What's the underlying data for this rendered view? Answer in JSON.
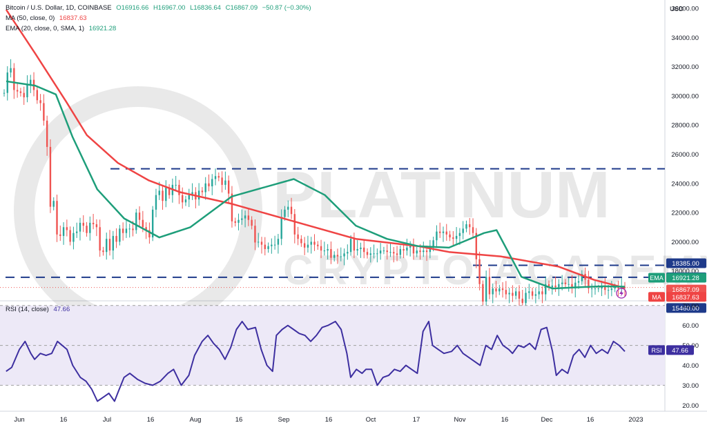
{
  "header": {
    "symbol": "Bitcoin / U.S. Dollar, 1D, COINBASE",
    "open": "O16916.66",
    "high": "H16967.00",
    "low": "L16836.64",
    "close": "C16867.09",
    "change": "−50.87 (−0.30%)",
    "ma_label": "MA (50, close, 0)",
    "ma_value": "16837.63",
    "ema_label": "EMA (20, close, 0, SMA, 1)",
    "ema_value": "16921.28",
    "rsi_label": "RSI (14, close)",
    "rsi_value": "47.66"
  },
  "watermark": {
    "line1": "PLATINUM",
    "line2": "CRYPTO ACADEMY"
  },
  "colors": {
    "up": "#26a69a",
    "down": "#ef5350",
    "ma": "#ef4444",
    "ema": "#1e9e7a",
    "rsi": "#3d2fa0",
    "rsi_band": "#ede9f7",
    "level": "#1e3a8a"
  },
  "chart_data": [
    {
      "type": "line",
      "title": "Bitcoin / U.S. Dollar, 1D, COINBASE",
      "currency": "USD",
      "ylim": [
        16000,
        36000
      ],
      "y_ticks": [
        18000,
        20000,
        22000,
        24000,
        26000,
        28000,
        30000,
        32000,
        34000,
        36000
      ],
      "y_tick_labels": [
        "18000.00",
        "20000.00",
        "22000.00",
        "24000.00",
        "26000.00",
        "28000.00",
        "30000.00",
        "32000.00",
        "34000.00",
        "36000.00"
      ],
      "x_tick_labels": [
        "Jun",
        "16",
        "Jul",
        "16",
        "Aug",
        "16",
        "Sep",
        "16",
        "Oct",
        "17",
        "Nov",
        "16",
        "Dec",
        "16",
        "2023"
      ],
      "horizontal_levels": [
        {
          "value": 25000,
          "label": "25000.00"
        },
        {
          "value": 17568,
          "label": "17568.00"
        },
        {
          "value": 15460,
          "label": "15460.00"
        }
      ],
      "price_labels": [
        {
          "label": "18385.00",
          "value": 18385
        },
        {
          "label": "17568.00",
          "value": 17568
        },
        {
          "tag": "EMA",
          "label": "16921.28",
          "value": 16921.28
        },
        {
          "label": "16867.09",
          "value": 16867.09
        },
        {
          "tag": "MA",
          "label": "16837.63",
          "value": 16837.63
        },
        {
          "label": "15460.00",
          "value": 15460
        }
      ],
      "series": [
        {
          "name": "Price",
          "close": [
            30200,
            31600,
            31900,
            30400,
            30300,
            30200,
            29900,
            30800,
            31100,
            30400,
            29700,
            29500,
            28300,
            26500,
            22400,
            22800,
            20500,
            20400,
            21000,
            20800,
            20000,
            20600,
            20700,
            21300,
            21100,
            20600,
            21300,
            21200,
            21000,
            19400,
            19300,
            20200,
            19400,
            20400,
            20000,
            20900,
            20600,
            20900,
            20900,
            20800,
            22000,
            21500,
            21000,
            20800,
            20300,
            22200,
            23200,
            23500,
            22800,
            23700,
            23200,
            23900,
            23900,
            23200,
            22700,
            22900,
            23200,
            23400,
            22900,
            23500,
            23400,
            24000,
            23800,
            24300,
            24500,
            24400,
            23900,
            24200,
            23300,
            21400,
            21300,
            21500,
            21600,
            21800,
            21500,
            21100,
            19950,
            20000,
            19800,
            19500,
            19700,
            19800,
            19800,
            20200,
            21700,
            22200,
            22400,
            21900,
            20500,
            20200,
            19900,
            19600,
            19800,
            20000,
            19800,
            19700,
            19400,
            19400,
            19500,
            18900,
            19100,
            19000,
            19000,
            19200,
            19300,
            20200,
            19400,
            19500,
            19600,
            19300,
            19100,
            19200,
            19200,
            19200,
            19400,
            19400,
            19300,
            19300,
            19200,
            19100,
            19500,
            19400,
            19600,
            19700,
            19200,
            19400,
            19300,
            19400,
            19300,
            19600,
            20100,
            20700,
            20600,
            20700,
            20500,
            20300,
            20200,
            20400,
            20600,
            20900,
            21200,
            21000,
            20600,
            18800,
            17100,
            15900,
            17600,
            16400,
            16800,
            16600,
            16800,
            16700,
            16400,
            16500,
            16300,
            16600,
            16100,
            15800,
            16500,
            16600,
            16300,
            16400,
            16600,
            16400,
            17100,
            16900,
            17000,
            16900,
            17100,
            17200,
            17100,
            17100,
            16800,
            17200,
            17300,
            17800,
            17400,
            16800,
            16800,
            16800,
            16800,
            16900,
            16700,
            16700,
            16800,
            16900,
            16800,
            16900,
            16867
          ]
        },
        {
          "name": "MA (50, close, 0)",
          "values": [
            [
              1,
              35900
            ],
            [
              15,
              32900
            ],
            [
              30,
              29600
            ],
            [
              40,
              27300
            ],
            [
              55,
              25400
            ],
            [
              70,
              24200
            ],
            [
              85,
              23400
            ],
            [
              110,
              22600
            ],
            [
              140,
              21400
            ],
            [
              170,
              20200
            ],
            [
              200,
              19700
            ],
            [
              215,
              19300
            ],
            [
              240,
              19000
            ],
            [
              268,
              18300
            ],
            [
              285,
              17400
            ],
            [
              300,
              16837.63
            ]
          ]
        },
        {
          "name": "EMA (20, close, 0, SMA, 1)",
          "values": [
            [
              1,
              31000
            ],
            [
              15,
              30700
            ],
            [
              25,
              30100
            ],
            [
              33,
              27200
            ],
            [
              45,
              23600
            ],
            [
              58,
              21600
            ],
            [
              75,
              20300
            ],
            [
              90,
              21000
            ],
            [
              110,
              23100
            ],
            [
              125,
              23700
            ],
            [
              140,
              24300
            ],
            [
              155,
              23200
            ],
            [
              170,
              21100
            ],
            [
              185,
              20200
            ],
            [
              200,
              19700
            ],
            [
              215,
              19600
            ],
            [
              232,
              20600
            ],
            [
              238,
              20800
            ],
            [
              250,
              17600
            ],
            [
              265,
              16800
            ],
            [
              280,
              16900
            ],
            [
              290,
              16950
            ],
            [
              300,
              16921.28
            ]
          ]
        }
      ]
    },
    {
      "type": "line",
      "title": "RSI (14, close)",
      "ylim": [
        17,
        72
      ],
      "y_ticks": [
        20,
        30,
        40,
        50,
        60,
        70
      ],
      "y_tick_labels": [
        "20.00",
        "30.00",
        "40.00",
        "50.00",
        "60.00",
        "70.00"
      ],
      "band": [
        30,
        70
      ],
      "midline": 50,
      "last": 47.66,
      "series": [
        {
          "name": "RSI",
          "values": [
            [
              1,
              37
            ],
            [
              4,
              39
            ],
            [
              8,
              48
            ],
            [
              11,
              52
            ],
            [
              14,
              46
            ],
            [
              16,
              43
            ],
            [
              19,
              46
            ],
            [
              22,
              45
            ],
            [
              25,
              46
            ],
            [
              28,
              52
            ],
            [
              33,
              48
            ],
            [
              36,
              40
            ],
            [
              40,
              34
            ],
            [
              43,
              32
            ],
            [
              46,
              28
            ],
            [
              49,
              22
            ],
            [
              52,
              24
            ],
            [
              55,
              26
            ],
            [
              58,
              22
            ],
            [
              60,
              27
            ],
            [
              63,
              34
            ],
            [
              66,
              36
            ],
            [
              70,
              33
            ],
            [
              74,
              31
            ],
            [
              78,
              30
            ],
            [
              82,
              32
            ],
            [
              86,
              36
            ],
            [
              89,
              38
            ],
            [
              93,
              30
            ],
            [
              97,
              35
            ],
            [
              100,
              45
            ],
            [
              104,
              52
            ],
            [
              107,
              55
            ],
            [
              110,
              51
            ],
            [
              113,
              48
            ],
            [
              116,
              43
            ],
            [
              119,
              49
            ],
            [
              122,
              58
            ],
            [
              125,
              62
            ],
            [
              128,
              58
            ],
            [
              132,
              59
            ],
            [
              135,
              48
            ],
            [
              138,
              40
            ],
            [
              141,
              37
            ],
            [
              143,
              55
            ],
            [
              146,
              58
            ],
            [
              149,
              60
            ],
            [
              152,
              58
            ],
            [
              155,
              56
            ],
            [
              158,
              55
            ],
            [
              161,
              52
            ],
            [
              164,
              55
            ],
            [
              167,
              59
            ],
            [
              170,
              60
            ],
            [
              174,
              62
            ],
            [
              177,
              58
            ],
            [
              180,
              46
            ],
            [
              182,
              34
            ],
            [
              185,
              38
            ],
            [
              188,
              36
            ],
            [
              190,
              38
            ],
            [
              193,
              38
            ],
            [
              196,
              30
            ],
            [
              199,
              34
            ],
            [
              202,
              35
            ],
            [
              205,
              38
            ],
            [
              208,
              37
            ],
            [
              211,
              40
            ],
            [
              214,
              38
            ],
            [
              217,
              36
            ],
            [
              220,
              57
            ],
            [
              223,
              62
            ],
            [
              225,
              50
            ],
            [
              228,
              48
            ],
            [
              231,
              46
            ],
            [
              235,
              47
            ],
            [
              238,
              50
            ],
            [
              241,
              46
            ],
            [
              244,
              44
            ],
            [
              247,
              42
            ],
            [
              250,
              40
            ],
            [
              253,
              50
            ],
            [
              256,
              48
            ],
            [
              259,
              55
            ],
            [
              262,
              50
            ],
            [
              265,
              48
            ],
            [
              267,
              46
            ],
            [
              270,
              50
            ],
            [
              273,
              49
            ],
            [
              276,
              51
            ],
            [
              279,
              48
            ],
            [
              282,
              58
            ],
            [
              285,
              59
            ],
            [
              288,
              47
            ],
            [
              290,
              35
            ],
            [
              293,
              38
            ],
            [
              296,
              36
            ],
            [
              299,
              45
            ],
            [
              302,
              48
            ],
            [
              305,
              44
            ],
            [
              308,
              50
            ],
            [
              311,
              46
            ],
            [
              314,
              48
            ],
            [
              317,
              46
            ],
            [
              320,
              52
            ],
            [
              323,
              50
            ],
            [
              326,
              47
            ]
          ]
        }
      ]
    }
  ]
}
